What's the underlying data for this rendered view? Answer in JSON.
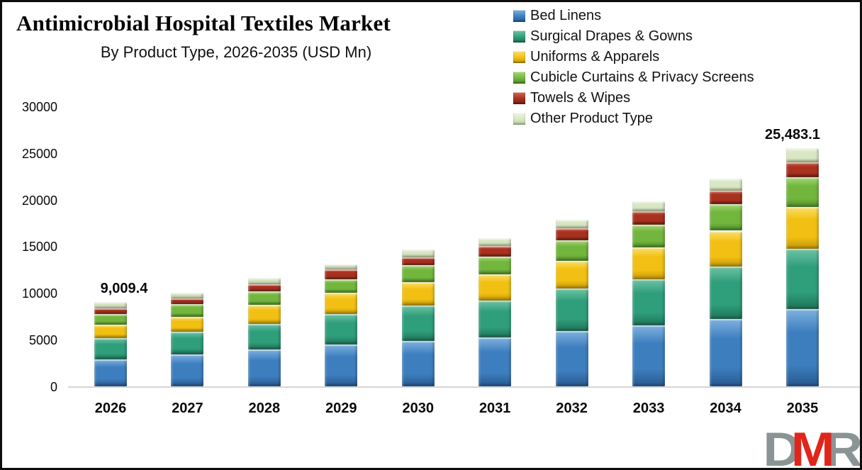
{
  "header": {
    "title": "Antimicrobial Hospital Textiles Market",
    "subtitle": "By Product Type, 2026-2035 (USD Mn)"
  },
  "chart_data": {
    "type": "bar",
    "stacked": true,
    "title": "Antimicrobial Hospital Textiles Market",
    "subtitle": "By Product Type, 2026-2035 (USD Mn)",
    "unit": "USD Mn",
    "gridlines": false,
    "legend_position": "top-right",
    "categories": [
      "2026",
      "2027",
      "2028",
      "2029",
      "2030",
      "2031",
      "2032",
      "2033",
      "2034",
      "2035"
    ],
    "series": [
      {
        "name": "Bed Linens",
        "color": {
          "light": "#7fb2e0",
          "base": "#3d7ebf",
          "dark": "#27598f"
        },
        "values": [
          2920,
          3390,
          3940,
          4450,
          4850,
          5200,
          5905,
          6535,
          7215,
          8295
        ]
      },
      {
        "name": "Surgical Drapes & Gowns",
        "color": {
          "light": "#6fc4a4",
          "base": "#2f9e7b",
          "dark": "#1e7358"
        },
        "values": [
          2210,
          2470,
          2770,
          3265,
          3820,
          4020,
          4575,
          4945,
          5600,
          6410
        ]
      },
      {
        "name": "Uniforms & Apparels",
        "color": {
          "light": "#fae06e",
          "base": "#f2c012",
          "dark": "#c2960a"
        },
        "values": [
          1480,
          1610,
          2010,
          2340,
          2510,
          2770,
          2965,
          3425,
          3845,
          4525
        ]
      },
      {
        "name": "Cubicle Curtains & Privacy Screens",
        "color": {
          "light": "#a9d87b",
          "base": "#72b63e",
          "dark": "#4f8c28"
        },
        "values": [
          1135,
          1335,
          1455,
          1435,
          1810,
          1910,
          2215,
          2435,
          2810,
          3145
        ]
      },
      {
        "name": "Towels & Wipes",
        "color": {
          "light": "#cf6a52",
          "base": "#a93120",
          "dark": "#741f12"
        },
        "values": [
          610,
          580,
          755,
          1010,
          830,
          1105,
          1253,
          1435,
          1465,
          1630
        ]
      },
      {
        "name": "Other Product Type",
        "color": {
          "light": "#f0f6e4",
          "base": "#d9e7c4",
          "dark": "#b4cc98"
        },
        "values": [
          654.4,
          600,
          700,
          570,
          830,
          830,
          935,
          1002,
          1308,
          1478.1
        ]
      }
    ],
    "totals": [
      9009.4,
      9985,
      11630,
      13070,
      14650,
      15835,
      17848,
      19777,
      22243,
      25483.1
    ],
    "y_axis": {
      "min": 0,
      "max": 30000,
      "step": 5000,
      "tick_labels": [
        "0",
        "5000",
        "10000",
        "15000",
        "20000",
        "25000",
        "30000"
      ]
    },
    "annotations": [
      {
        "category": "2026",
        "label": "9,009.4"
      },
      {
        "category": "2035",
        "label": "25,483.1"
      }
    ]
  },
  "logo": {
    "letters": [
      {
        "char": "D",
        "color": "#8b9494"
      },
      {
        "char": "M",
        "color": "#e1251b"
      },
      {
        "char": "R",
        "color": "#8b9494"
      }
    ]
  }
}
